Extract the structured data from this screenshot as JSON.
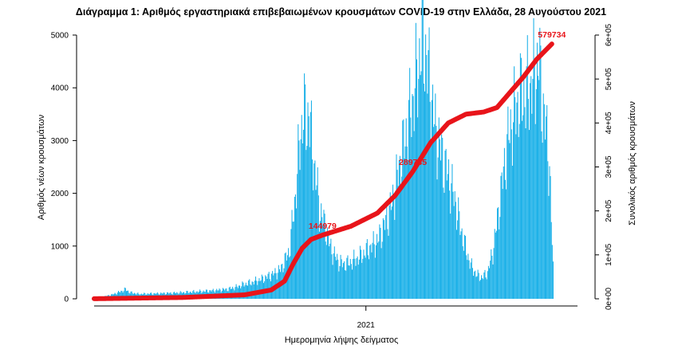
{
  "chart_data": {
    "type": "bar",
    "title": "Διάγραμμα 1: Αριθμός εργαστηριακά επιβεβαιωμένων κρουσμάτων COVID-19 στην Ελλάδα, 28 Αυγούστου 2021",
    "xlabel": "Ημερομηνία λήψης δείγματος",
    "ylabel": "Αριθμός νέων κρουσμάτων",
    "y2label": "Συνολικός αριθμός κρουσμάτων",
    "x_tick_label": "2021",
    "x_tick_position_days": 307,
    "total_days": 546,
    "ylim": [
      0,
      5000
    ],
    "y2lim": [
      0,
      600000
    ],
    "yticks": [
      0,
      1000,
      2000,
      3000,
      4000,
      5000
    ],
    "y2ticks": [
      "0e+00",
      "1e+05",
      "2e+05",
      "3e+05",
      "4e+05",
      "5e+05",
      "6e+05"
    ],
    "y2tick_values": [
      0,
      100000,
      200000,
      300000,
      400000,
      500000,
      600000
    ],
    "grid": false,
    "legend": "none",
    "colors": {
      "bars": "#1ab0e8",
      "cumulative_line": "#e8141a"
    },
    "daily_cases_anchors": [
      [
        0,
        20
      ],
      [
        10,
        40
      ],
      [
        20,
        80
      ],
      [
        30,
        140
      ],
      [
        35,
        180
      ],
      [
        40,
        120
      ],
      [
        50,
        90
      ],
      [
        70,
        100
      ],
      [
        90,
        110
      ],
      [
        110,
        130
      ],
      [
        130,
        150
      ],
      [
        150,
        180
      ],
      [
        160,
        220
      ],
      [
        170,
        280
      ],
      [
        180,
        320
      ],
      [
        190,
        380
      ],
      [
        200,
        450
      ],
      [
        210,
        550
      ],
      [
        220,
        900
      ],
      [
        226,
        1800
      ],
      [
        230,
        2600
      ],
      [
        233,
        3100
      ],
      [
        236,
        3600
      ],
      [
        239,
        3300
      ],
      [
        242,
        3550
      ],
      [
        246,
        2800
      ],
      [
        250,
        2300
      ],
      [
        254,
        1700
      ],
      [
        258,
        1500
      ],
      [
        262,
        1300
      ],
      [
        266,
        1000
      ],
      [
        270,
        850
      ],
      [
        276,
        700
      ],
      [
        282,
        650
      ],
      [
        290,
        700
      ],
      [
        300,
        800
      ],
      [
        310,
        950
      ],
      [
        320,
        1100
      ],
      [
        330,
        1500
      ],
      [
        336,
        1800
      ],
      [
        342,
        2300
      ],
      [
        348,
        2800
      ],
      [
        354,
        3300
      ],
      [
        360,
        3800
      ],
      [
        365,
        4300
      ],
      [
        368,
        4700
      ],
      [
        372,
        4900
      ],
      [
        376,
        4400
      ],
      [
        380,
        3900
      ],
      [
        385,
        3200
      ],
      [
        390,
        2900
      ],
      [
        396,
        2500
      ],
      [
        402,
        2200
      ],
      [
        408,
        1800
      ],
      [
        414,
        1300
      ],
      [
        420,
        900
      ],
      [
        426,
        600
      ],
      [
        432,
        450
      ],
      [
        438,
        400
      ],
      [
        444,
        500
      ],
      [
        450,
        900
      ],
      [
        456,
        1600
      ],
      [
        462,
        2400
      ],
      [
        468,
        3100
      ],
      [
        474,
        3500
      ],
      [
        480,
        3800
      ],
      [
        486,
        3900
      ],
      [
        492,
        4000
      ],
      [
        498,
        4300
      ],
      [
        502,
        4500
      ],
      [
        506,
        3700
      ],
      [
        510,
        3200
      ],
      [
        514,
        2500
      ],
      [
        516,
        1500
      ],
      [
        518,
        600
      ]
    ],
    "cumulative_anchors": [
      [
        0,
        200
      ],
      [
        100,
        3000
      ],
      [
        170,
        9000
      ],
      [
        200,
        20000
      ],
      [
        215,
        40000
      ],
      [
        225,
        80000
      ],
      [
        235,
        115000
      ],
      [
        245,
        135000
      ],
      [
        258,
        144979
      ],
      [
        290,
        165000
      ],
      [
        320,
        195000
      ],
      [
        340,
        235000
      ],
      [
        360,
        289735
      ],
      [
        380,
        355000
      ],
      [
        400,
        400000
      ],
      [
        420,
        420000
      ],
      [
        440,
        425000
      ],
      [
        455,
        435000
      ],
      [
        470,
        470000
      ],
      [
        485,
        505000
      ],
      [
        500,
        545000
      ],
      [
        517,
        579734
      ]
    ],
    "annotations": [
      {
        "text": "144979",
        "day": 258,
        "value": 144979
      },
      {
        "text": "289735",
        "day": 360,
        "value": 289735
      },
      {
        "text": "579734",
        "day": 517,
        "value": 579734
      }
    ]
  }
}
